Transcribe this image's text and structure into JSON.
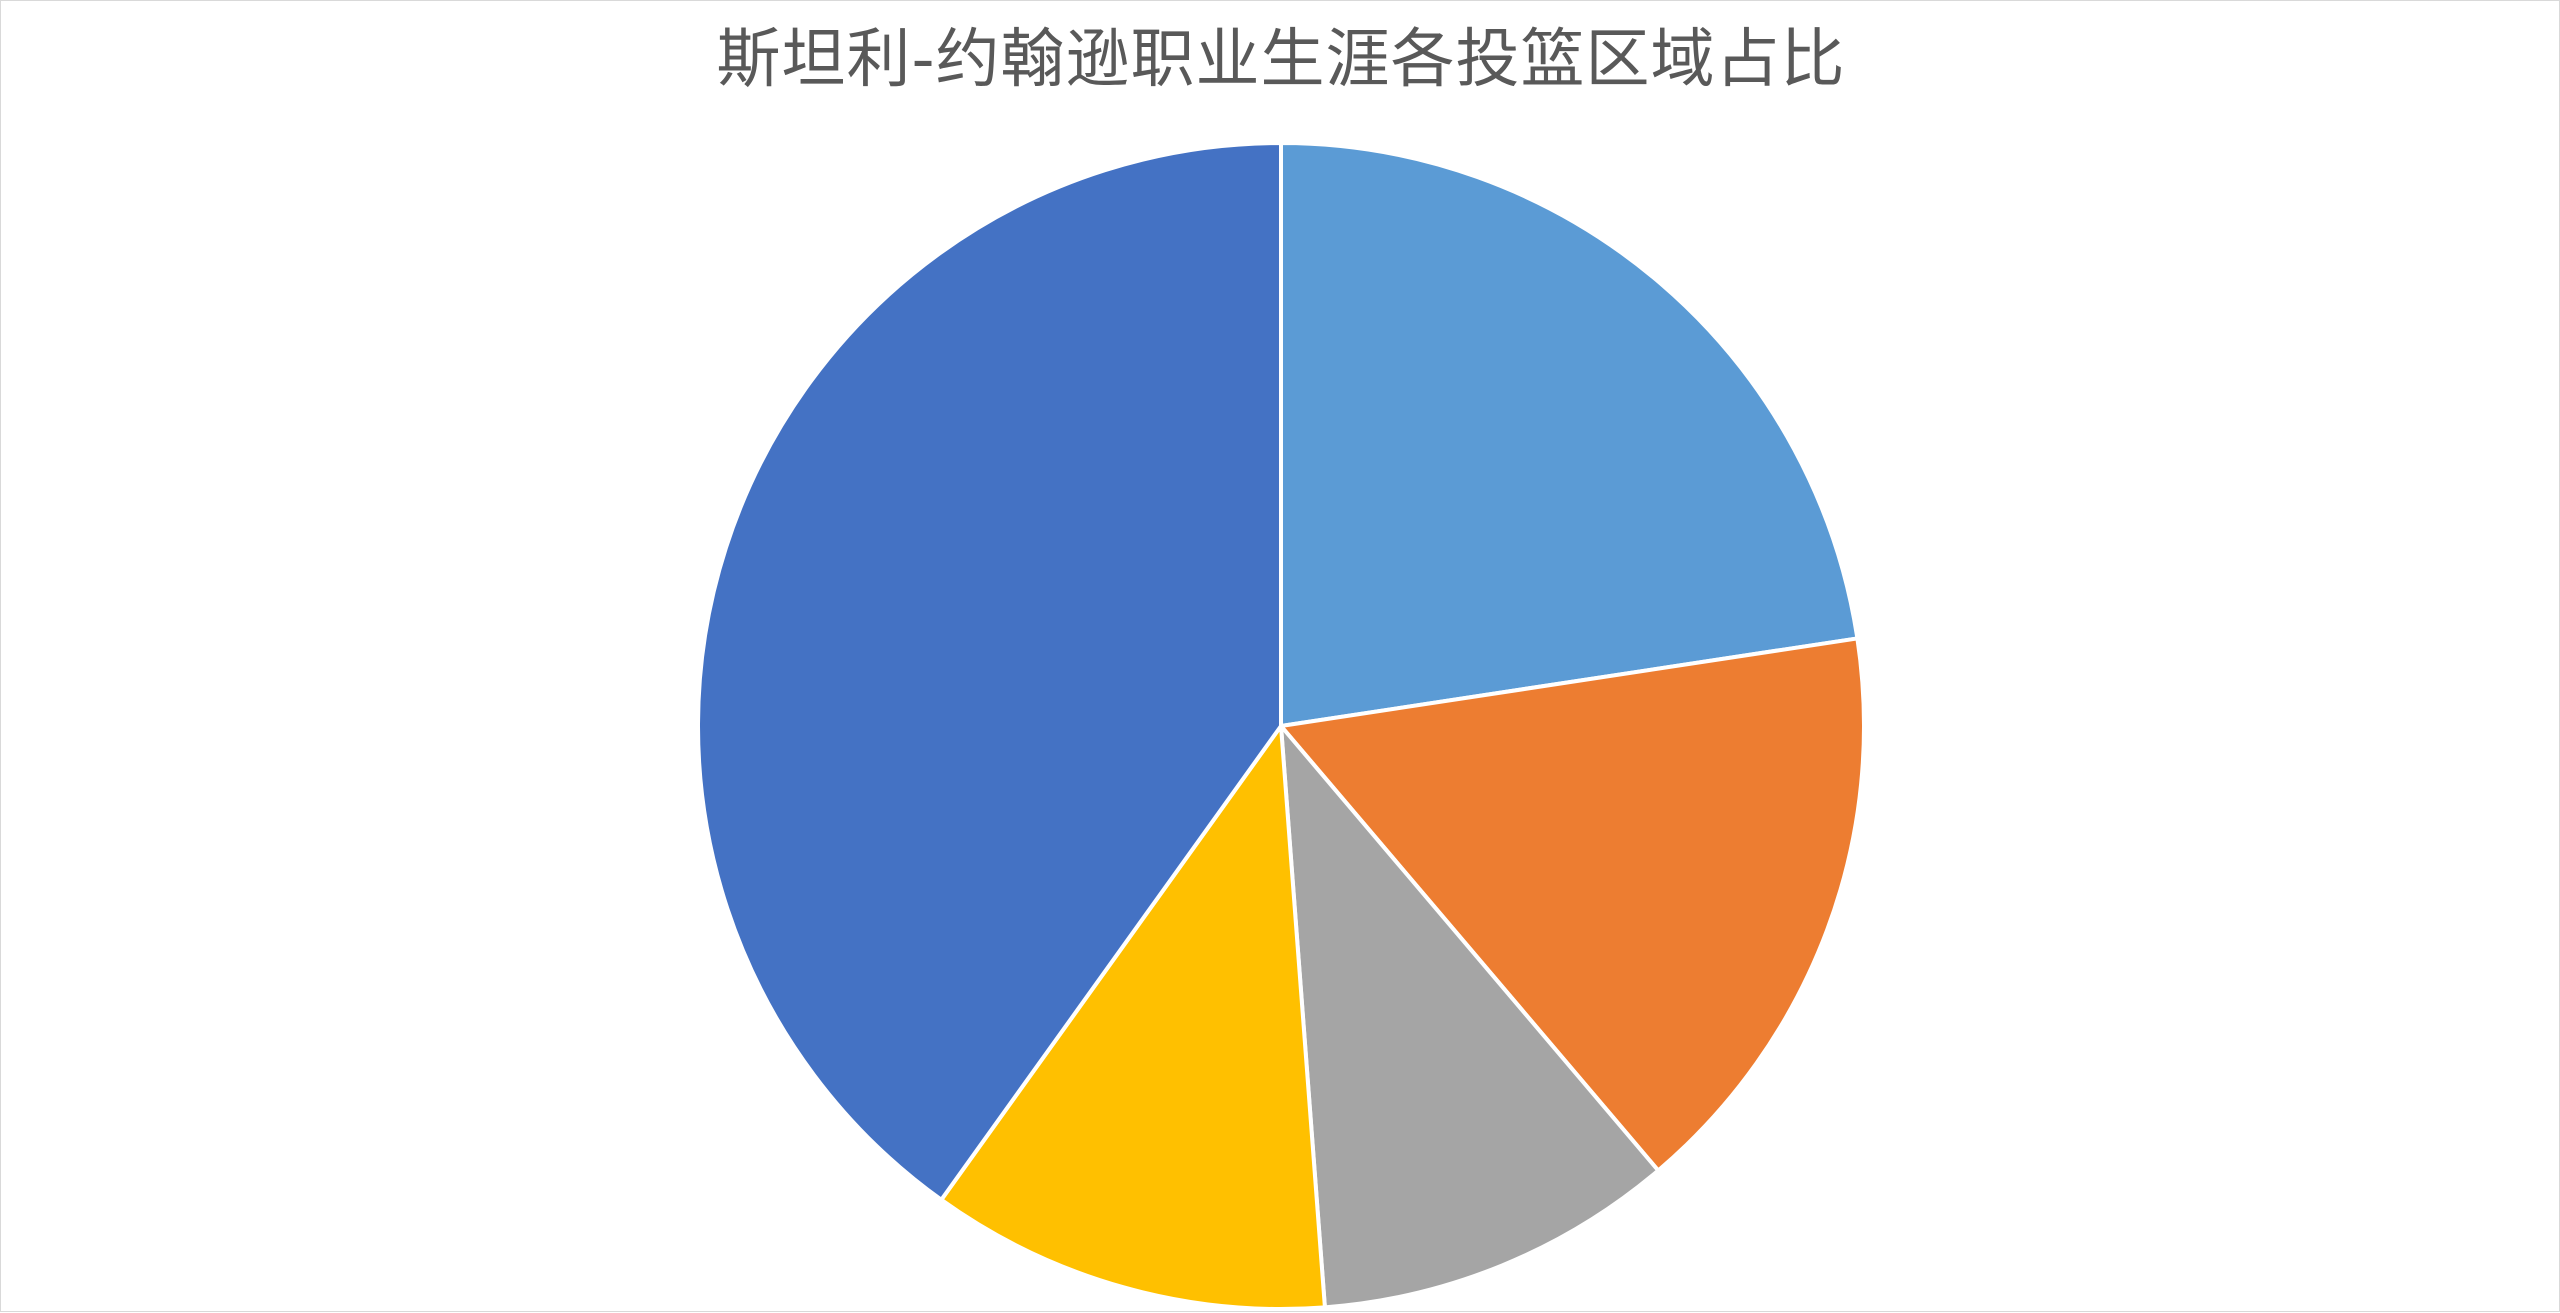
{
  "chart_data": {
    "type": "pie",
    "title": "斯坦利-约翰逊职业生涯各投篮区域占比",
    "categories": [
      "",
      "",
      "",
      "",
      ""
    ],
    "values": [
      22.6,
      16.2,
      10.0,
      11.1,
      40.1
    ],
    "colors": [
      "#5B9BD5",
      "#ED7D31",
      "#A5A5A5",
      "#FFC000",
      "#4472C4"
    ],
    "start_angle_deg": 0,
    "direction": "clockwise",
    "legend": "none",
    "data_labels": "none"
  }
}
